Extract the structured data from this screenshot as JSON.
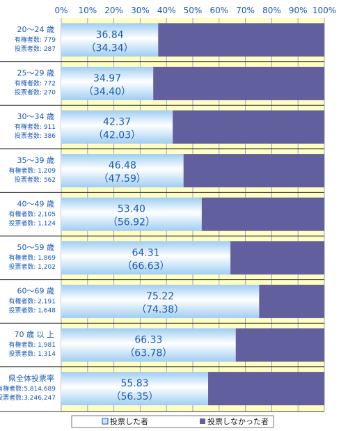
{
  "chart_data": {
    "type": "bar",
    "orientation": "horizontal-stacked-100",
    "xlim": [
      0,
      100
    ],
    "x_ticks": [
      "0%",
      "10%",
      "20%",
      "30%",
      "40%",
      "50%",
      "60%",
      "70%",
      "80%",
      "90%",
      "100%"
    ],
    "grid": true,
    "legend_position": "bottom",
    "colors": {
      "plot_background": "#ffffc4",
      "voted": "#cfe6fa",
      "not_voted": "#625f9f",
      "text": "#1a5ab0",
      "grid": "#9aa0c0"
    },
    "categories": [
      {
        "label": "20～24 歳",
        "lines": [
          "有権者数:  779",
          "投票者数:  287"
        ],
        "voted": 36.84,
        "previous": "（34.34）",
        "voted_label": "36.84"
      },
      {
        "label": "25～29 歳",
        "lines": [
          "有権者数:  772",
          "投票者数:  270"
        ],
        "voted": 34.97,
        "previous": "（34.40）",
        "voted_label": "34.97"
      },
      {
        "label": "30～34 歳",
        "lines": [
          "有権者数:  911",
          "投票者数:  386"
        ],
        "voted": 42.37,
        "previous": "（42.03）",
        "voted_label": "42.37"
      },
      {
        "label": "35～39 歳",
        "lines": [
          "有権者数: 1,209",
          "投票者数:  562"
        ],
        "voted": 46.48,
        "previous": "（47.59）",
        "voted_label": "46.48"
      },
      {
        "label": "40～49 歳",
        "lines": [
          "有権者数: 2,105",
          "投票者数: 1,124"
        ],
        "voted": 53.4,
        "previous": "（56.92）",
        "voted_label": "53.40"
      },
      {
        "label": "50～59 歳",
        "lines": [
          "有権者数: 1,869",
          "投票者数: 1,202"
        ],
        "voted": 64.31,
        "previous": "（66.63）",
        "voted_label": "64.31"
      },
      {
        "label": "60～69 歳",
        "lines": [
          "有権者数: 2,191",
          "投票者数: 1,648"
        ],
        "voted": 75.22,
        "previous": "（74.38）",
        "voted_label": "75.22"
      },
      {
        "label": "70 歳 以 上",
        "lines": [
          "有権者数: 1,981",
          "投票者数: 1,314"
        ],
        "voted": 66.33,
        "previous": "（63.78）",
        "voted_label": "66.33"
      },
      {
        "label": "県全体投票率",
        "lines": [
          "有権者数:5,814,689",
          "投票者数:3,246,247"
        ],
        "voted": 55.83,
        "previous": "（56.35）",
        "voted_label": "55.83"
      }
    ],
    "series": [
      {
        "name": "投票した者"
      },
      {
        "name": "投票しなかった者"
      }
    ]
  }
}
